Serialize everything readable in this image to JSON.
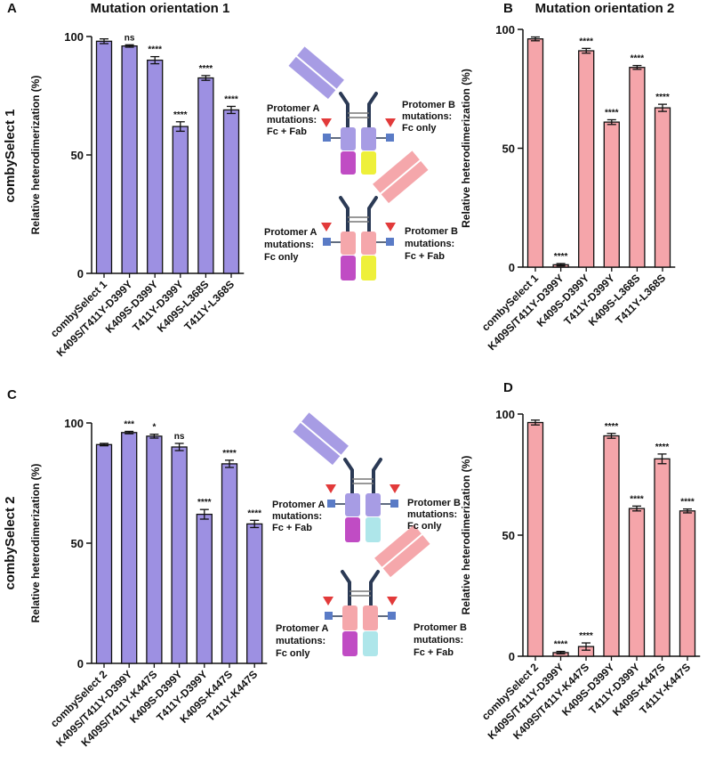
{
  "chart_data": [
    {
      "type": "bar",
      "panel": "A",
      "title": "Mutation orientation 1",
      "row_label": "combySelect 1",
      "ylabel": "Relative heterodimerization (%)",
      "categories": [
        "combySelect 1",
        "K409S/T411Y-D399Y",
        "K409S-D399Y",
        "T411Y-D399Y",
        "K409S-L368S",
        "T411Y-L368S"
      ],
      "values": [
        98,
        96,
        90,
        62,
        82.5,
        69
      ],
      "errors": [
        1,
        0.5,
        1.5,
        2,
        1,
        1.5
      ],
      "annotations": [
        null,
        "ns",
        "****",
        "****",
        "****",
        "****"
      ],
      "color": "#9d90e2",
      "ylim": [
        0,
        100
      ],
      "yticks": [
        0,
        50,
        100
      ]
    },
    {
      "type": "bar",
      "panel": "B",
      "title": "Mutation orientation 2",
      "ylabel": "Relative heterodimerization (%)",
      "categories": [
        "combySelect 1",
        "K409S/T411Y-D399Y",
        "K409S-D399Y",
        "T411Y-D399Y",
        "K409S-L368S",
        "T411Y-L368S"
      ],
      "values": [
        96,
        1,
        91,
        61,
        84,
        67
      ],
      "errors": [
        0.8,
        0.5,
        1,
        1,
        0.8,
        1.5
      ],
      "annotations": [
        null,
        "****",
        "****",
        "****",
        "****",
        "****"
      ],
      "color": "#f5a5aa",
      "ylim": [
        0,
        100
      ],
      "yticks": [
        0,
        50,
        100
      ]
    },
    {
      "type": "bar",
      "panel": "C",
      "row_label": "combySelect 2",
      "ylabel": "Relative heterodimerization (%)",
      "categories": [
        "combySelect 2",
        "K409S/T411Y-D399Y",
        "K409S/T411Y-K447S",
        "K409S-D399Y",
        "T411Y-D399Y",
        "K409S-K447S",
        "T411Y-K447S"
      ],
      "values": [
        91,
        96,
        94.5,
        90,
        62,
        83,
        58
      ],
      "errors": [
        0.5,
        0.5,
        0.8,
        1.5,
        2,
        1.5,
        1.5
      ],
      "annotations": [
        null,
        "***",
        "*",
        "ns",
        "****",
        "****",
        "****"
      ],
      "color": "#9d90e2",
      "ylim": [
        0,
        100
      ],
      "yticks": [
        0,
        50,
        100
      ]
    },
    {
      "type": "bar",
      "panel": "D",
      "ylabel": "Relative heterodimerization (%)",
      "categories": [
        "combySelect 2",
        "K409S/T411Y-D399Y",
        "K409S/T411Y-K447S",
        "K409S-D399Y",
        "T411Y-D399Y",
        "K409S-K447S",
        "T411Y-K447S"
      ],
      "values": [
        96.5,
        1.5,
        4,
        91,
        61,
        81.5,
        60
      ],
      "errors": [
        1,
        0.5,
        1.5,
        1,
        1,
        2,
        0.8
      ],
      "annotations": [
        null,
        "****",
        "****",
        "****",
        "****",
        "****",
        "****"
      ],
      "color": "#f5a5aa",
      "ylim": [
        0,
        100
      ],
      "yticks": [
        0,
        50,
        100
      ]
    }
  ],
  "diagrams": [
    {
      "protomer_a": [
        "Protomer A",
        "mutations:",
        "Fc + Fab"
      ],
      "protomer_b": [
        "Protomer B",
        "mutations:",
        "Fc only"
      ]
    },
    {
      "protomer_a": [
        "Protomer A",
        "mutations:",
        "Fc only"
      ],
      "protomer_b": [
        "Protomer B",
        "mutations:",
        "Fc + Fab"
      ]
    },
    {
      "protomer_a": [
        "Protomer A",
        "mutations:",
        "Fc + Fab"
      ],
      "protomer_b": [
        "Protomer B",
        "mutations:",
        "Fc only"
      ]
    },
    {
      "protomer_a": [
        "Protomer A",
        "mutations:",
        "Fc only"
      ],
      "protomer_b": [
        "Protomer B",
        "mutations:",
        "Fc + Fab"
      ]
    }
  ]
}
